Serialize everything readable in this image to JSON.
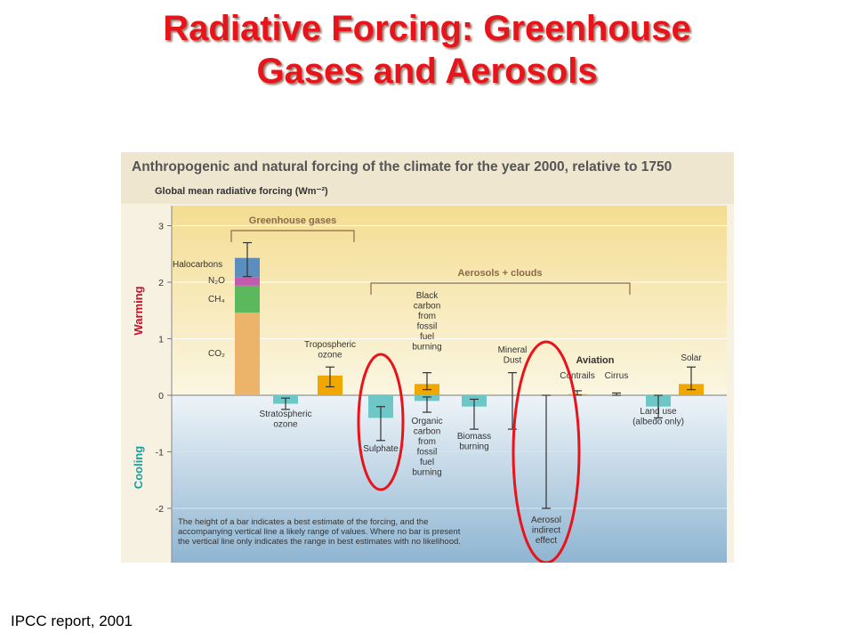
{
  "slide": {
    "title_line1": "Radiative Forcing: Greenhouse",
    "title_line2": "Gases and Aerosols",
    "source": "IPCC report, 2001"
  },
  "chart_data": {
    "type": "bar",
    "title": "Anthropogenic and natural forcing of the climate for the year 2000, relative to 1750",
    "ylabel": "Global mean radiative forcing (Wm⁻²)",
    "ylim": [
      -2.5,
      3.3
    ],
    "yticks": [
      3,
      2,
      1,
      0,
      -1,
      -2
    ],
    "zone_labels": {
      "warming": "Warming",
      "cooling": "Cooling"
    },
    "group_labels": {
      "greenhouse": "Greenhouse gases",
      "aerosols": "Aerosols + clouds",
      "aviation": "Aviation"
    },
    "stack_labels": [
      "Halocarbons",
      "N₂O",
      "CH₄",
      "CO₂"
    ],
    "note": [
      "The height of a bar indicates a best estimate of the forcing, and the",
      "accompanying vertical line a likely range of values.  Where no bar is present",
      "the vertical line only indicates the range in best estimates with no likelihood."
    ],
    "ghg_stack": [
      {
        "name": "CO₂",
        "value": 1.46,
        "color": "#ebb46a"
      },
      {
        "name": "CH₄",
        "value": 0.48,
        "color": "#5cb85c"
      },
      {
        "name": "N₂O",
        "value": 0.15,
        "color": "#c15bb0"
      },
      {
        "name": "Halocarbons",
        "value": 0.34,
        "color": "#5b8dbf"
      }
    ],
    "ghg_range": [
      2.1,
      2.7
    ],
    "bars": [
      {
        "label": [
          "Stratospheric",
          "ozone"
        ],
        "value": -0.15,
        "range": [
          -0.25,
          -0.05
        ],
        "color": "#6ec7c7"
      },
      {
        "label": [
          "Tropospheric",
          "ozone"
        ],
        "value": 0.35,
        "range": [
          0.15,
          0.5
        ],
        "color": "#f0a800"
      },
      {
        "label": [
          "Sulphate"
        ],
        "value": -0.4,
        "range": [
          -0.8,
          -0.2
        ],
        "color": "#6ec7c7"
      },
      {
        "label": [
          "Black",
          "carbon",
          "from",
          "fossil",
          "fuel",
          "burning"
        ],
        "value": 0.2,
        "range": [
          0.1,
          0.4
        ],
        "color": "#f0a800"
      },
      {
        "label": [
          "Organic",
          "carbon",
          "from",
          "fossil",
          "fuel",
          "burning"
        ],
        "value": -0.1,
        "range": [
          -0.3,
          -0.03
        ],
        "color": "#6ec7c7"
      },
      {
        "label": [
          "Biomass",
          "burning"
        ],
        "value": -0.2,
        "range": [
          -0.6,
          -0.07
        ],
        "color": "#6ec7c7"
      },
      {
        "label": [
          "Mineral",
          "Dust"
        ],
        "value": null,
        "range": [
          -0.6,
          0.4
        ],
        "color": "#6ec7c7"
      },
      {
        "label": [
          "Aerosol",
          "indirect",
          "effect"
        ],
        "value": null,
        "range": [
          -2.0,
          0
        ],
        "color": "#6ec7c7"
      },
      {
        "label": [
          "Contrails"
        ],
        "value": 0.02,
        "range": [
          0.005,
          0.08
        ],
        "color": "#f0a800"
      },
      {
        "label": [
          "Cirrus"
        ],
        "value": null,
        "range": [
          0,
          0.04
        ],
        "color": "#6ec7c7"
      },
      {
        "label": [
          "Land use",
          "(albedo only)"
        ],
        "value": -0.2,
        "range": [
          -0.4,
          0
        ],
        "color": "#6ec7c7"
      },
      {
        "label": [
          "Solar"
        ],
        "value": 0.2,
        "range": [
          0.1,
          0.5
        ],
        "color": "#f0a800"
      }
    ],
    "highlighted": [
      "Sulphate",
      "Aerosol indirect effect"
    ],
    "colors": {
      "warming_bg": "#f5e5a6",
      "cooling_bg": "#a8c9de",
      "warming_text": "#c8102e",
      "cooling_text": "#12a1a6",
      "highlight": "#e8141b"
    }
  }
}
